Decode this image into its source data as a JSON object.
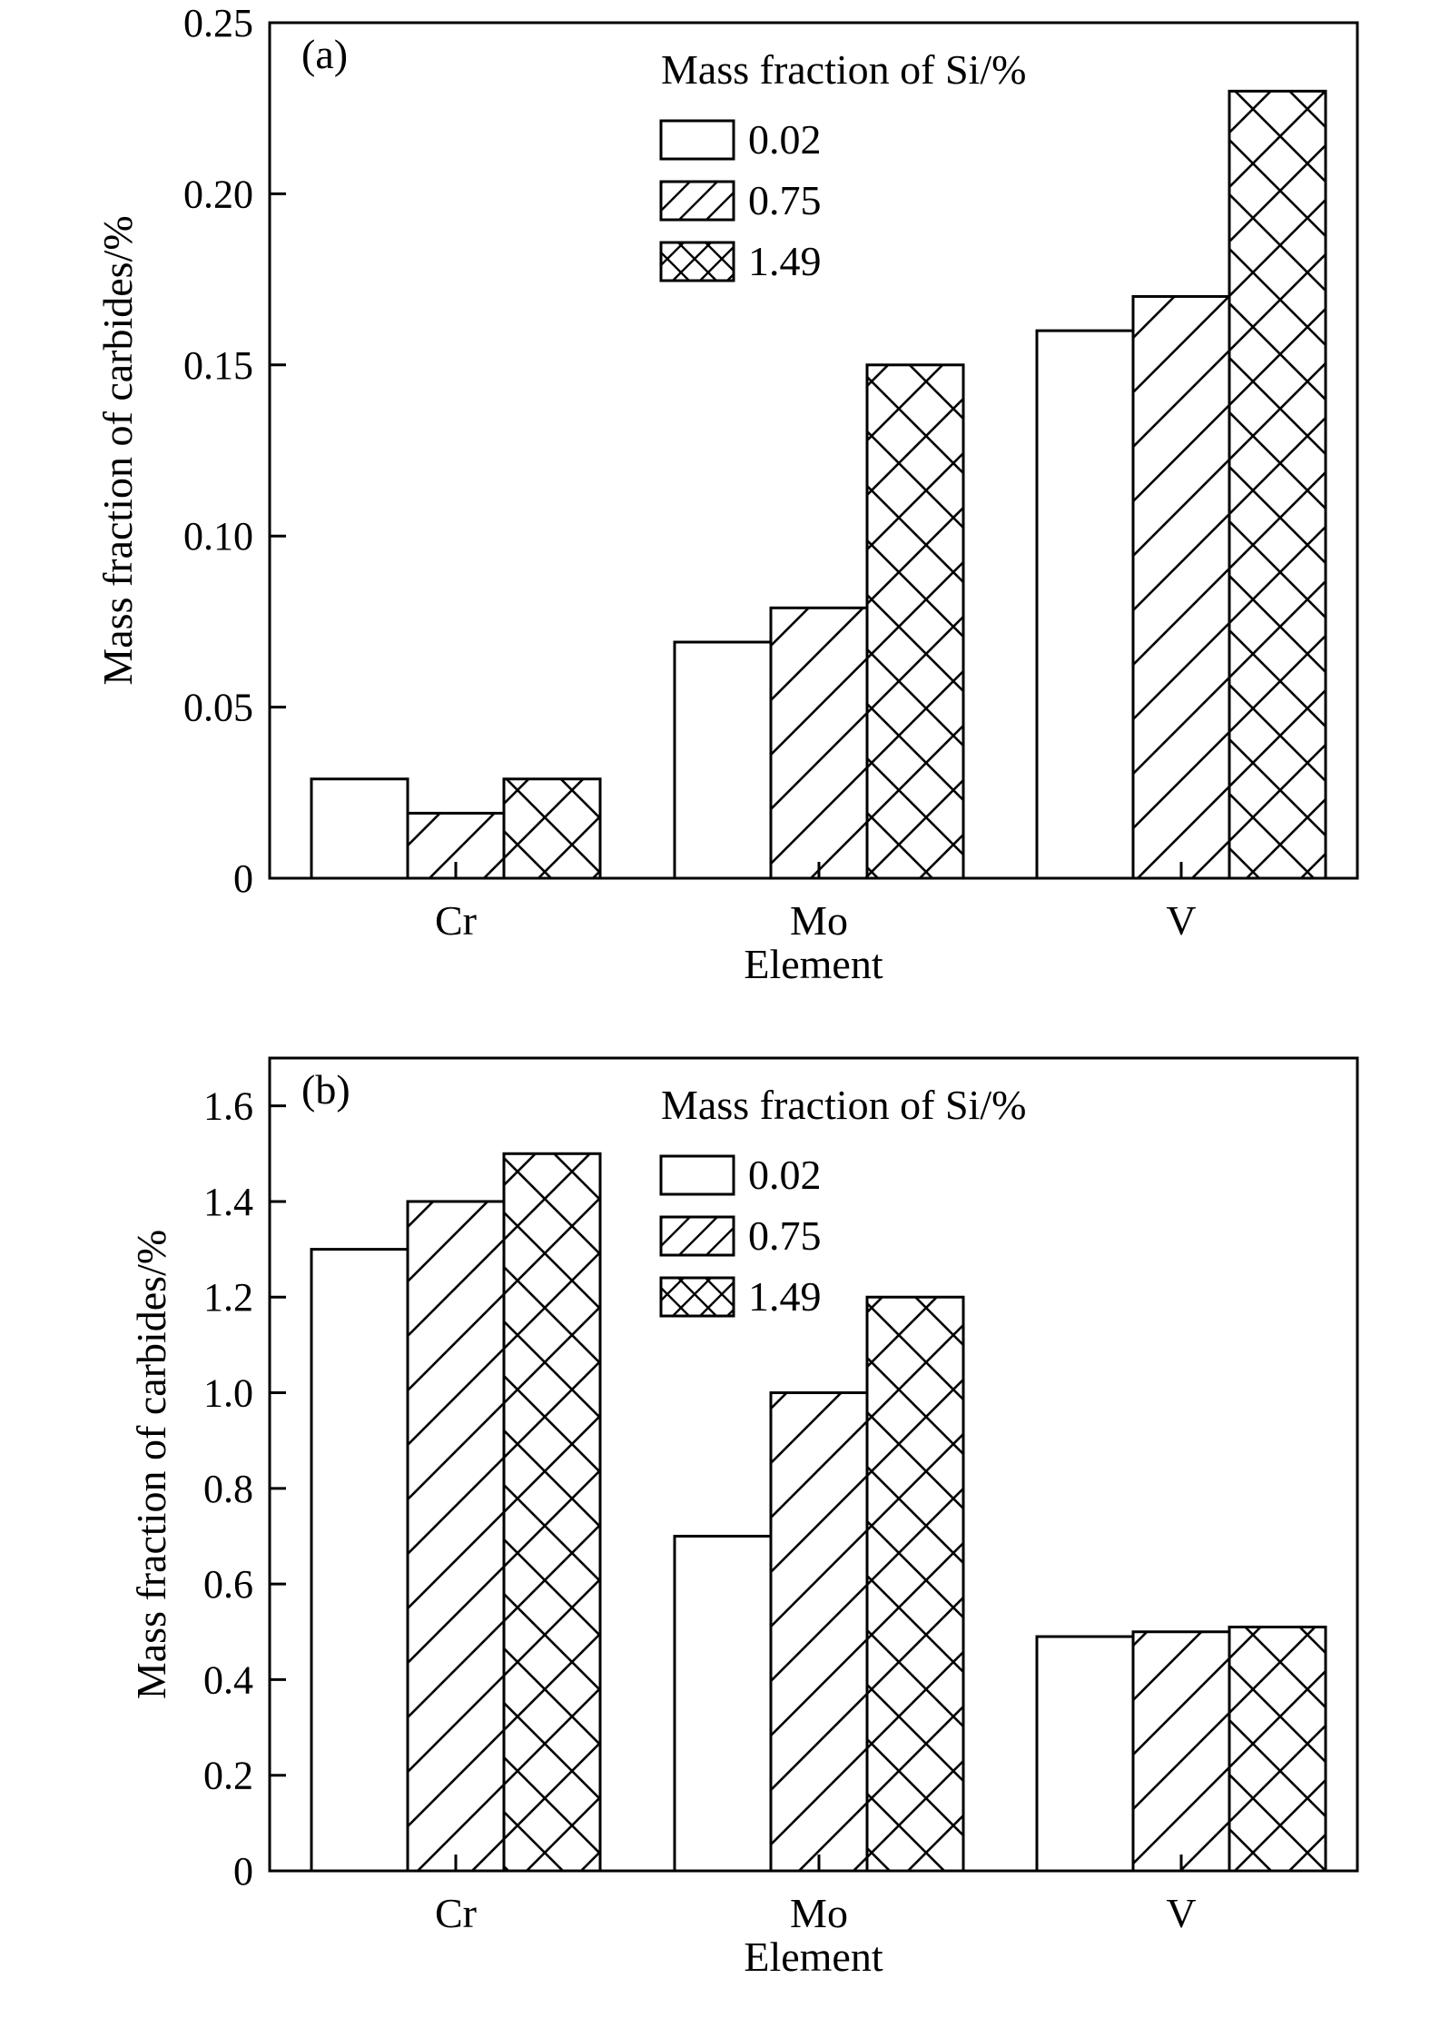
{
  "chart_data": [
    {
      "type": "bar",
      "panel_label": "(a)",
      "categories": [
        "Cr",
        "Mo",
        "V"
      ],
      "xlabel": "Element",
      "ylabel": "Mass fraction of carbides/%",
      "ylim": [
        0,
        0.25
      ],
      "yticks": [
        0,
        0.05,
        0.1,
        0.15,
        0.2,
        0.25
      ],
      "ytick_labels": [
        "0",
        "0.05",
        "0.10",
        "0.15",
        "0.20",
        "0.25"
      ],
      "legend_title": "Mass fraction of Si/%",
      "legend_position": "top-right",
      "series": [
        {
          "name": "0.02",
          "pattern": "none",
          "values": [
            0.029,
            0.069,
            0.16
          ]
        },
        {
          "name": "0.75",
          "pattern": "diagonal",
          "values": [
            0.019,
            0.079,
            0.17
          ]
        },
        {
          "name": "1.49",
          "pattern": "crosshatch",
          "values": [
            0.029,
            0.15,
            0.23
          ]
        }
      ],
      "grid": false
    },
    {
      "type": "bar",
      "panel_label": "(b)",
      "categories": [
        "Cr",
        "Mo",
        "V"
      ],
      "xlabel": "Element",
      "ylabel": "Mass fraction of carbides/%",
      "ylim": [
        0,
        1.7
      ],
      "yticks": [
        0,
        0.2,
        0.4,
        0.6,
        0.8,
        1.0,
        1.2,
        1.4,
        1.6
      ],
      "ytick_labels": [
        "0",
        "0.2",
        "0.4",
        "0.6",
        "0.8",
        "1.0",
        "1.2",
        "1.4",
        "1.6"
      ],
      "legend_title": "Mass fraction of Si/%",
      "legend_position": "top-right",
      "series": [
        {
          "name": "0.02",
          "pattern": "none",
          "values": [
            1.3,
            0.7,
            0.49
          ]
        },
        {
          "name": "0.75",
          "pattern": "diagonal",
          "values": [
            1.4,
            1.0,
            0.5
          ]
        },
        {
          "name": "1.49",
          "pattern": "crosshatch",
          "values": [
            1.5,
            1.2,
            0.51
          ]
        }
      ],
      "grid": false
    }
  ]
}
